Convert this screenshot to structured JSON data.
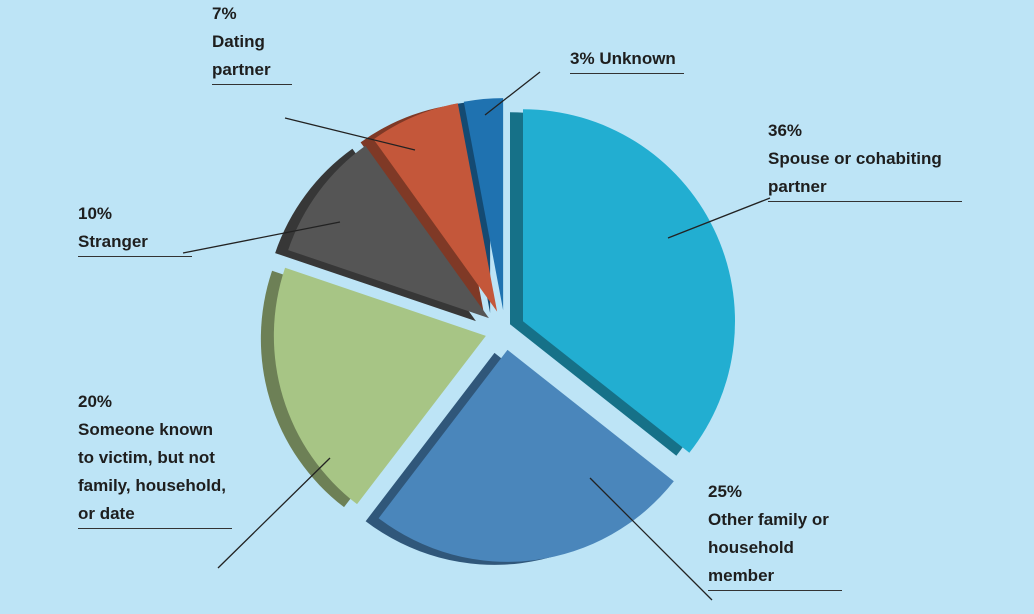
{
  "chart_data": {
    "type": "pie",
    "categories": [
      "Spouse or cohabiting partner",
      "Other family or household member",
      "Someone known to victim, but not family, household, or date",
      "Stranger",
      "Dating partner",
      "Unknown"
    ],
    "values": [
      36,
      25,
      20,
      10,
      7,
      3
    ],
    "value_labels": [
      "36%",
      "25%",
      "20%",
      "10%",
      "7%",
      "3%"
    ],
    "colors": [
      "#22aed1",
      "#4a86bb",
      "#a7c585",
      "#555555",
      "#c4573a",
      "#1f72b0"
    ]
  }
}
